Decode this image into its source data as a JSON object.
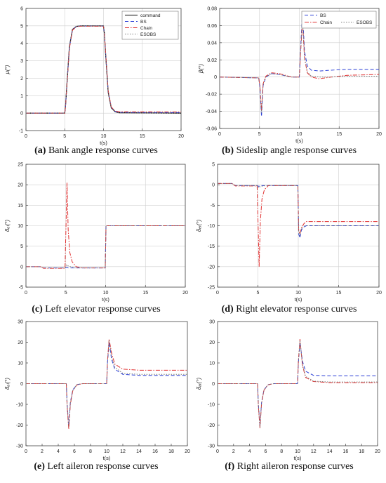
{
  "colors": {
    "command": "#000000",
    "bs": "#2a3fd6",
    "chain": "#e03030",
    "esobs": "#7a7a7a",
    "axis": "#444444",
    "grid": "#cfcfcf"
  },
  "chart_data": [
    {
      "type": "line",
      "caption_tag": "(a)",
      "caption_text": "Bank angle response curves",
      "xlabel": "t(s)",
      "ylabel": "μ(°)",
      "xlim": [
        0,
        20
      ],
      "ylim": [
        -1,
        6
      ],
      "xticks": [
        0,
        5,
        10,
        15,
        20
      ],
      "yticks": [
        -1,
        0,
        1,
        2,
        3,
        4,
        5,
        6
      ],
      "grid": true,
      "legend": {
        "placement": "top-right",
        "layout": "stacked",
        "entries": [
          "command",
          "BS",
          "Chain",
          "ESOBS"
        ]
      },
      "series": [
        {
          "name": "command",
          "style": "solid",
          "color": "#000000",
          "x": [
            0,
            5,
            5.1,
            5.3,
            5.6,
            6,
            6.5,
            7,
            9.99,
            10.1,
            10.3,
            10.6,
            11,
            11.5,
            12,
            20
          ],
          "y": [
            0,
            0,
            0.4,
            1.8,
            3.8,
            4.8,
            4.97,
            5,
            5,
            4.6,
            3.2,
            1.2,
            0.3,
            0.08,
            0.02,
            0
          ]
        },
        {
          "name": "BS",
          "style": "dashed",
          "color": "#2a3fd6",
          "x": [
            0,
            5,
            5.1,
            5.3,
            5.6,
            6,
            6.5,
            7,
            9.99,
            10.1,
            10.3,
            10.6,
            11,
            11.5,
            12,
            20
          ],
          "y": [
            0,
            0,
            0.38,
            1.75,
            3.75,
            4.78,
            4.96,
            4.99,
            4.99,
            4.62,
            3.25,
            1.25,
            0.32,
            0.1,
            0.04,
            0.03
          ]
        },
        {
          "name": "Chain",
          "style": "dashdot",
          "color": "#e03030",
          "x": [
            0,
            5,
            5.1,
            5.3,
            5.6,
            6,
            6.5,
            7,
            9.99,
            10.1,
            10.3,
            10.6,
            11,
            11.5,
            12,
            20
          ],
          "y": [
            0,
            0,
            0.36,
            1.7,
            3.7,
            4.75,
            4.95,
            4.98,
            4.98,
            4.63,
            3.3,
            1.3,
            0.35,
            0.12,
            0.08,
            0.07
          ]
        },
        {
          "name": "ESOBS",
          "style": "dotted",
          "color": "#7a7a7a",
          "x": [
            0,
            5,
            5.1,
            5.3,
            5.6,
            6,
            6.5,
            7,
            9.99,
            10.1,
            10.3,
            10.6,
            11,
            11.5,
            12,
            20
          ],
          "y": [
            0,
            0,
            0.4,
            1.8,
            3.8,
            4.8,
            4.97,
            5,
            5,
            4.6,
            3.2,
            1.2,
            0.3,
            0.08,
            0.02,
            0
          ]
        }
      ]
    },
    {
      "type": "line",
      "caption_tag": "(b)",
      "caption_text": "Sideslip angle response curves",
      "xlabel": "t(s)",
      "ylabel": "β(°)",
      "xlim": [
        0,
        20
      ],
      "ylim": [
        -0.06,
        0.08
      ],
      "xticks": [
        0,
        5,
        10,
        15,
        20
      ],
      "yticks": [
        -0.06,
        -0.04,
        -0.02,
        0,
        0.02,
        0.04,
        0.06,
        0.08
      ],
      "ytick_labels": [
        "-0.06",
        "-0.04",
        "-0.02",
        "0",
        "0.02",
        "0.04",
        "0.06",
        "0.08"
      ],
      "grid": true,
      "legend": {
        "placement": "top-right",
        "layout": "grid",
        "entries": [
          "BS",
          "Chain",
          "ESOBS"
        ]
      },
      "series": [
        {
          "name": "BS",
          "style": "dashed",
          "color": "#2a3fd6",
          "x": [
            0,
            4.9,
            5.05,
            5.25,
            5.45,
            5.8,
            6.5,
            7.5,
            9,
            10,
            10.2,
            10.4,
            10.65,
            11,
            11.5,
            12.5,
            14,
            16,
            20
          ],
          "y": [
            0,
            -0.001,
            -0.012,
            -0.046,
            -0.01,
            0.0,
            0.004,
            0.003,
            0.0,
            0.0,
            0.04,
            0.076,
            0.03,
            0.013,
            0.008,
            0.007,
            0.008,
            0.009,
            0.009
          ]
        },
        {
          "name": "Chain",
          "style": "dashdot",
          "color": "#e03030",
          "x": [
            0,
            4.9,
            5.05,
            5.25,
            5.45,
            5.8,
            6.5,
            7.5,
            9,
            10,
            10.2,
            10.4,
            10.65,
            11,
            11.5,
            12.5,
            14,
            16,
            20
          ],
          "y": [
            0,
            -0.001,
            -0.01,
            -0.039,
            -0.008,
            0.001,
            0.005,
            0.004,
            0.0,
            0.0,
            0.035,
            0.066,
            0.022,
            0.005,
            0.0,
            -0.002,
            0.0,
            0.002,
            0.003
          ]
        },
        {
          "name": "ESOBS",
          "style": "dotted",
          "color": "#7a7a7a",
          "x": [
            0,
            4.9,
            5.05,
            5.25,
            5.45,
            5.8,
            6.5,
            7.5,
            9,
            10,
            10.2,
            10.4,
            10.65,
            11,
            11.5,
            12.5,
            14,
            16,
            20
          ],
          "y": [
            0,
            -0.001,
            -0.011,
            -0.042,
            -0.009,
            0.0,
            0.004,
            0.003,
            0.0,
            0.0,
            0.036,
            0.07,
            0.024,
            0.006,
            0.001,
            0.0,
            0.0,
            0.001,
            0.001
          ]
        }
      ]
    },
    {
      "type": "line",
      "caption_tag": "(c)",
      "caption_text": "Left elevator response curves",
      "xlabel": "t(s)",
      "ylabel": "δₑₗ(°)",
      "xlim": [
        0,
        20
      ],
      "ylim": [
        -5,
        25
      ],
      "xticks": [
        0,
        5,
        10,
        15,
        20
      ],
      "yticks": [
        -5,
        0,
        5,
        10,
        15,
        20,
        25
      ],
      "grid": true,
      "series": [
        {
          "name": "BS",
          "style": "dashed",
          "color": "#2a3fd6",
          "x": [
            0,
            1.8,
            2.2,
            4.9,
            5.1,
            5.3,
            6,
            9.95,
            10.05,
            20
          ],
          "y": [
            0,
            0,
            -0.3,
            -0.3,
            -0.2,
            -0.3,
            -0.3,
            -0.3,
            10,
            10
          ]
        },
        {
          "name": "Chain",
          "style": "dashdot",
          "color": "#e03030",
          "x": [
            0,
            1.8,
            2.2,
            4.9,
            5.05,
            5.15,
            5.3,
            5.5,
            5.8,
            6.3,
            7,
            9.95,
            10.05,
            20
          ],
          "y": [
            0,
            0,
            -0.4,
            -0.4,
            12,
            20.5,
            9,
            3.5,
            1.2,
            0.0,
            -0.3,
            -0.3,
            10,
            10
          ]
        },
        {
          "name": "ESOBS",
          "style": "dotted",
          "color": "#7a7a7a",
          "x": [
            0,
            1.8,
            2.2,
            4.9,
            5.1,
            5.3,
            6,
            9.95,
            10.05,
            20
          ],
          "y": [
            0,
            0,
            -0.3,
            -0.3,
            0.5,
            0.2,
            -0.3,
            -0.3,
            10,
            10
          ]
        }
      ]
    },
    {
      "type": "line",
      "caption_tag": "(d)",
      "caption_text": "Right elevator response curves",
      "xlabel": "t(s)",
      "ylabel": "δₑᵣ(°)",
      "xlim": [
        0,
        20
      ],
      "ylim": [
        -25,
        5
      ],
      "xticks": [
        0,
        5,
        10,
        15,
        20
      ],
      "yticks": [
        -25,
        -20,
        -15,
        -10,
        -5,
        0,
        5
      ],
      "grid": true,
      "series": [
        {
          "name": "BS",
          "style": "dashed",
          "color": "#2a3fd6",
          "x": [
            0,
            1.8,
            2.2,
            4.9,
            5.1,
            5.3,
            6,
            9.95,
            10.05,
            10.2,
            10.4,
            10.7,
            11,
            12,
            20
          ],
          "y": [
            0.3,
            0.3,
            -0.2,
            -0.2,
            -0.4,
            -0.2,
            -0.2,
            -0.2,
            -12,
            -13,
            -11,
            -10.3,
            -10,
            -10,
            -10
          ]
        },
        {
          "name": "Chain",
          "style": "dashdot",
          "color": "#e03030",
          "x": [
            0,
            1.8,
            2.2,
            4.9,
            5.05,
            5.15,
            5.3,
            5.5,
            5.8,
            6.3,
            7,
            9.95,
            10.05,
            10.2,
            10.4,
            10.7,
            11,
            12,
            20
          ],
          "y": [
            0.3,
            0.3,
            -0.3,
            -0.3,
            -12,
            -20,
            -9,
            -3.5,
            -1.2,
            -0.2,
            -0.2,
            -0.2,
            -11,
            -12,
            -10.5,
            -9.5,
            -9,
            -9,
            -9
          ]
        },
        {
          "name": "ESOBS",
          "style": "dotted",
          "color": "#7a7a7a",
          "x": [
            0,
            1.8,
            2.2,
            4.9,
            5.1,
            5.3,
            6,
            9.95,
            10.05,
            10.2,
            10.4,
            10.7,
            11,
            12,
            20
          ],
          "y": [
            0.3,
            0.3,
            -0.2,
            -0.2,
            -0.8,
            -0.4,
            -0.2,
            -0.2,
            -11.5,
            -12.5,
            -10.7,
            -10.1,
            -10,
            -10,
            -10
          ]
        }
      ]
    },
    {
      "type": "line",
      "caption_tag": "(e)",
      "caption_text": "Left aileron response curves",
      "xlabel": "t(s)",
      "ylabel": "δₐₗ(°)",
      "xlim": [
        0,
        20
      ],
      "ylim": [
        -30,
        30
      ],
      "xticks": [
        0,
        2,
        4,
        6,
        8,
        10,
        12,
        14,
        16,
        18,
        20
      ],
      "yticks": [
        -30,
        -20,
        -10,
        0,
        10,
        20,
        30
      ],
      "grid": false,
      "series": [
        {
          "name": "BS",
          "style": "dashed",
          "color": "#2a3fd6",
          "x": [
            0,
            5,
            5.1,
            5.3,
            5.5,
            5.8,
            6.3,
            7,
            8,
            10,
            10.1,
            10.3,
            10.6,
            11,
            12,
            14,
            20
          ],
          "y": [
            0,
            0,
            -10,
            -20,
            -9,
            -3,
            -0.5,
            0,
            0,
            0,
            10,
            20,
            12,
            7,
            4.5,
            4,
            4
          ]
        },
        {
          "name": "Chain",
          "style": "dashdot",
          "color": "#e03030",
          "x": [
            0,
            5,
            5.1,
            5.3,
            5.5,
            5.8,
            6.3,
            7,
            8,
            10,
            10.1,
            10.3,
            10.6,
            11,
            12,
            14,
            20
          ],
          "y": [
            0,
            0,
            -11,
            -22,
            -10,
            -3.5,
            -0.6,
            0,
            0,
            0,
            11,
            21.5,
            15,
            9.5,
            7,
            6.5,
            6.5
          ]
        },
        {
          "name": "ESOBS",
          "style": "dotted",
          "color": "#7a7a7a",
          "x": [
            0,
            5,
            5.1,
            5.3,
            5.5,
            5.8,
            6.3,
            7,
            8,
            10,
            10.1,
            10.3,
            10.6,
            11,
            12,
            14,
            20
          ],
          "y": [
            0,
            0,
            -10.5,
            -21,
            -9.5,
            -3.2,
            -0.5,
            0,
            0,
            0,
            10.5,
            21,
            13,
            8,
            5,
            4.5,
            4.5
          ]
        }
      ]
    },
    {
      "type": "line",
      "caption_tag": "(f)",
      "caption_text": "Right aileron response curves",
      "xlabel": "t(s)",
      "ylabel": "δₐᵣ(°)",
      "xlim": [
        0,
        20
      ],
      "ylim": [
        -30,
        30
      ],
      "xticks": [
        0,
        2,
        4,
        6,
        8,
        10,
        12,
        14,
        16,
        18,
        20
      ],
      "yticks": [
        -30,
        -20,
        -10,
        0,
        10,
        20,
        30
      ],
      "grid": false,
      "series": [
        {
          "name": "BS",
          "style": "dashed",
          "color": "#2a3fd6",
          "x": [
            0,
            5,
            5.1,
            5.3,
            5.5,
            5.8,
            6.3,
            7,
            8,
            10,
            10.1,
            10.3,
            10.6,
            11,
            12,
            14,
            20
          ],
          "y": [
            0,
            0,
            -10,
            -20,
            -9,
            -3,
            -0.5,
            0,
            0,
            0,
            10,
            20,
            11,
            6,
            4,
            3.8,
            3.8
          ]
        },
        {
          "name": "Chain",
          "style": "dashdot",
          "color": "#e03030",
          "x": [
            0,
            5,
            5.1,
            5.3,
            5.5,
            5.8,
            6.3,
            7,
            8,
            10,
            10.1,
            10.3,
            10.6,
            11,
            12,
            14,
            20
          ],
          "y": [
            0,
            0,
            -11,
            -21.5,
            -9.5,
            -3.2,
            -0.6,
            0,
            0,
            0,
            11,
            21.5,
            9,
            3,
            1,
            0.5,
            0.5
          ]
        },
        {
          "name": "ESOBS",
          "style": "dotted",
          "color": "#7a7a7a",
          "x": [
            0,
            5,
            5.1,
            5.3,
            5.5,
            5.8,
            6.3,
            7,
            8,
            10,
            10.1,
            10.3,
            10.6,
            11,
            12,
            14,
            20
          ],
          "y": [
            0,
            0,
            -10.5,
            -21,
            -9.2,
            -3.1,
            -0.5,
            0,
            0,
            0,
            10.5,
            21,
            9.5,
            3.5,
            1.2,
            0.8,
            0.8
          ]
        }
      ]
    }
  ]
}
